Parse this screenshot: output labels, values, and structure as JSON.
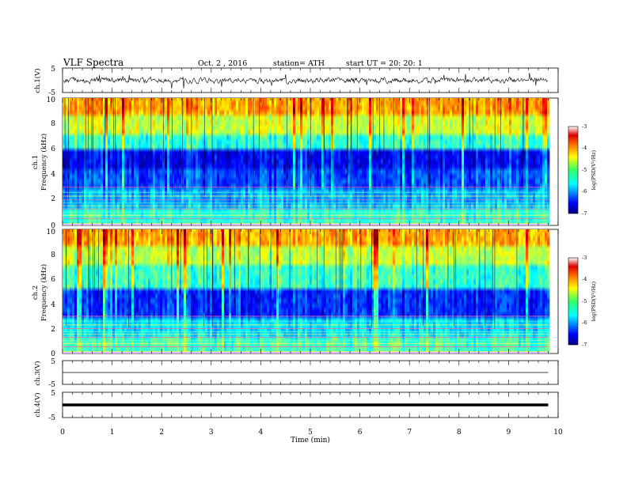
{
  "header": {
    "title": "VLF  Spectra",
    "date": "Oct. 2  , 2016",
    "station": "station= ATH",
    "start": "start  UT  =    20: 20: 1"
  },
  "chart_data": {
    "type": "heatmap",
    "xlabel": "Time  (min)",
    "xlim": [
      0,
      10
    ],
    "x_ticks": [
      "0",
      "1",
      "2",
      "3",
      "4",
      "5",
      "6",
      "7",
      "8",
      "9",
      "10"
    ],
    "data_end_min": 9.8,
    "panels": [
      {
        "id": "ch1-waveform",
        "type": "line",
        "ylabel": "ch.1(V)",
        "ylim": [
          -5,
          5
        ],
        "y_ticks": [
          "5",
          "-5"
        ],
        "description_level": "noisy waveform around 0 V"
      },
      {
        "id": "ch1-spectrogram",
        "type": "heatmap",
        "ylabel_top": "ch.1",
        "ylabel": "Frequency  (kHz)",
        "ylim": [
          0,
          10
        ],
        "y_ticks": [
          "0",
          "2",
          "4",
          "6",
          "8",
          "10"
        ],
        "colorbar": {
          "label": "log(PSD(V²/Hz)",
          "range": [
            -7,
            -3
          ],
          "ticks": [
            "-3",
            "-4",
            "-5",
            "-6",
            "-7"
          ]
        }
      },
      {
        "id": "ch2-spectrogram",
        "type": "heatmap",
        "ylabel_top": "ch.2",
        "ylabel": "Frequency  (kHz)",
        "ylim": [
          0,
          10
        ],
        "y_ticks": [
          "0",
          "2",
          "4",
          "6",
          "8",
          "10"
        ],
        "colorbar": {
          "label": "log(PSD(V²/Hz)",
          "range": [
            -7,
            -3
          ],
          "ticks": [
            "-3",
            "-4",
            "-5",
            "-6",
            "-7"
          ]
        }
      },
      {
        "id": "ch3-waveform",
        "type": "line",
        "ylabel": "ch.3(V)",
        "ylim": [
          -5,
          5
        ],
        "y_ticks": [
          "5",
          "-5"
        ],
        "description_level": "flat line near 0 V"
      },
      {
        "id": "ch4-waveform",
        "type": "line",
        "ylabel": "ch.4(V)",
        "ylim": [
          -5,
          5
        ],
        "y_ticks": [
          "5",
          "-5"
        ],
        "description_level": "thick flat band near 0 V"
      }
    ]
  }
}
